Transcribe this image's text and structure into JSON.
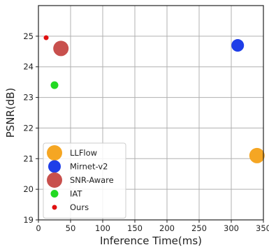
{
  "chart_data": {
    "type": "scatter",
    "title": "",
    "xlabel": "Inference Time(ms)",
    "ylabel": "PSNR(dB)",
    "xlim": [
      0,
      350
    ],
    "ylim": [
      19,
      26
    ],
    "xticks": [
      0,
      50,
      100,
      150,
      200,
      250,
      300,
      350
    ],
    "xtick_labels": [
      "0",
      "50",
      "100",
      "150",
      "200",
      "250",
      "300",
      "350"
    ],
    "yticks": [
      19,
      20,
      21,
      22,
      23,
      24,
      25
    ],
    "ytick_labels": [
      "19",
      "20",
      "21",
      "22",
      "23",
      "24",
      "25"
    ],
    "grid": true,
    "legend_position": "bottom-left",
    "series": [
      {
        "name": "LLFlow",
        "color": "#f5a623",
        "marker_size": "large",
        "points": [
          {
            "x": 340,
            "y": 21.1
          }
        ]
      },
      {
        "name": "Mirnet-v2",
        "color": "#1f3ee8",
        "marker_size": "medium",
        "points": [
          {
            "x": 310,
            "y": 24.7
          }
        ]
      },
      {
        "name": "SNR-Aware",
        "color": "#c8504d",
        "marker_size": "large",
        "points": [
          {
            "x": 35,
            "y": 24.6
          }
        ]
      },
      {
        "name": "IAT",
        "color": "#22d922",
        "marker_size": "small",
        "points": [
          {
            "x": 25,
            "y": 23.4
          }
        ]
      },
      {
        "name": "Ours",
        "color": "#e01010",
        "marker_size": "tiny",
        "points": [
          {
            "x": 12,
            "y": 24.95
          }
        ]
      }
    ]
  }
}
